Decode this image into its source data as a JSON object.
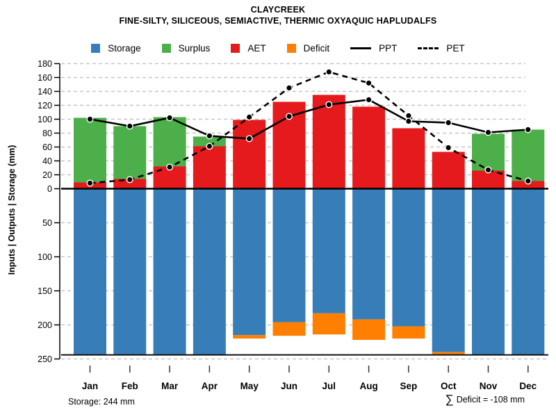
{
  "header": {
    "title": "CLAYCREEK",
    "subtitle": "FINE-SILTY, SILICEOUS, SEMIACTIVE, THERMIC OXYAQUIC HAPLUDALFS"
  },
  "y_axis_label": "Inputs | Outputs | Storage  (mm)",
  "legend": {
    "items": [
      {
        "label": "Storage",
        "swatch": "square",
        "color": "#377EB8"
      },
      {
        "label": "Surplus",
        "swatch": "square",
        "color": "#4DAF4A"
      },
      {
        "label": "AET",
        "swatch": "square",
        "color": "#E41A1C"
      },
      {
        "label": "Deficit",
        "swatch": "square",
        "color": "#FF7F00"
      },
      {
        "label": "PPT",
        "swatch": "solid-line",
        "color": "#000000"
      },
      {
        "label": "PET",
        "swatch": "dashed-line",
        "color": "#000000"
      }
    ]
  },
  "footer": {
    "storage_note": "Storage: 244 mm",
    "deficit_sigma": "∑",
    "deficit_note": "Deficit = -108 mm"
  },
  "colors": {
    "storage": "#377EB8",
    "surplus": "#4DAF4A",
    "aet": "#E41A1C",
    "deficit": "#FF7F00",
    "line": "#000000",
    "grid": "#C6C6C6",
    "background": "#FFFFFF"
  },
  "chart_data": {
    "type": "bar",
    "subtype": "stacked bars (upper water-budget panel + inverted lower storage panel) with PPT/PET line overlays",
    "title": "CLAYCREEK",
    "xlabel": "",
    "ylabel": "Inputs | Outputs | Storage  (mm)",
    "categories": [
      "Jan",
      "Feb",
      "Mar",
      "Apr",
      "May",
      "Jun",
      "Jul",
      "Aug",
      "Sep",
      "Oct",
      "Nov",
      "Dec"
    ],
    "upper_axis": {
      "min": 0,
      "max": 180,
      "step": 20,
      "tick_labels": [
        "0",
        "20",
        "40",
        "60",
        "80",
        "100",
        "120",
        "140",
        "160",
        "180"
      ],
      "grid": "dashed"
    },
    "lower_axis": {
      "min": 0,
      "max": 250,
      "step": 50,
      "inverted": true,
      "tick_labels": [
        "0",
        "50",
        "100",
        "150",
        "200",
        "250"
      ],
      "grid": "dashed"
    },
    "series": [
      {
        "name": "AET",
        "type": "bar",
        "panel": "upper",
        "color": "#E41A1C",
        "values": [
          9,
          14,
          32,
          61,
          99,
          125,
          135,
          118,
          87,
          53,
          26,
          11
        ]
      },
      {
        "name": "Surplus",
        "type": "bar",
        "panel": "upper",
        "stack": "on-AET",
        "color": "#4DAF4A",
        "values": [
          93,
          76,
          71,
          14,
          0,
          0,
          0,
          0,
          0,
          0,
          53,
          74
        ]
      },
      {
        "name": "PPT",
        "type": "line",
        "line_style": "solid",
        "color": "#000000",
        "marker": "filled-circle",
        "values": [
          100,
          90,
          102,
          76,
          72,
          104,
          121,
          128,
          97,
          95,
          81,
          85
        ]
      },
      {
        "name": "PET",
        "type": "line",
        "line_style": "dashed",
        "color": "#000000",
        "marker": "filled-circle",
        "values": [
          8,
          13,
          31,
          61,
          103,
          145,
          168,
          152,
          105,
          59,
          27,
          11
        ]
      },
      {
        "name": "Storage",
        "type": "bar",
        "panel": "lower",
        "color": "#377EB8",
        "values": [
          244,
          244,
          244,
          244,
          215,
          196,
          183,
          192,
          202,
          240,
          244,
          244
        ]
      },
      {
        "name": "Deficit",
        "type": "bar",
        "panel": "lower",
        "stack": "below-Storage",
        "color": "#FF7F00",
        "values": [
          0,
          0,
          0,
          0,
          5,
          20,
          31,
          30,
          18,
          4,
          0,
          0
        ]
      }
    ],
    "reference_lines": [
      {
        "name": "storage-capacity",
        "panel": "lower",
        "value_mm": 244
      }
    ],
    "annotations": {
      "storage_total": "Storage: 244 mm",
      "deficit_total": "∑ Deficit = -108 mm"
    }
  }
}
